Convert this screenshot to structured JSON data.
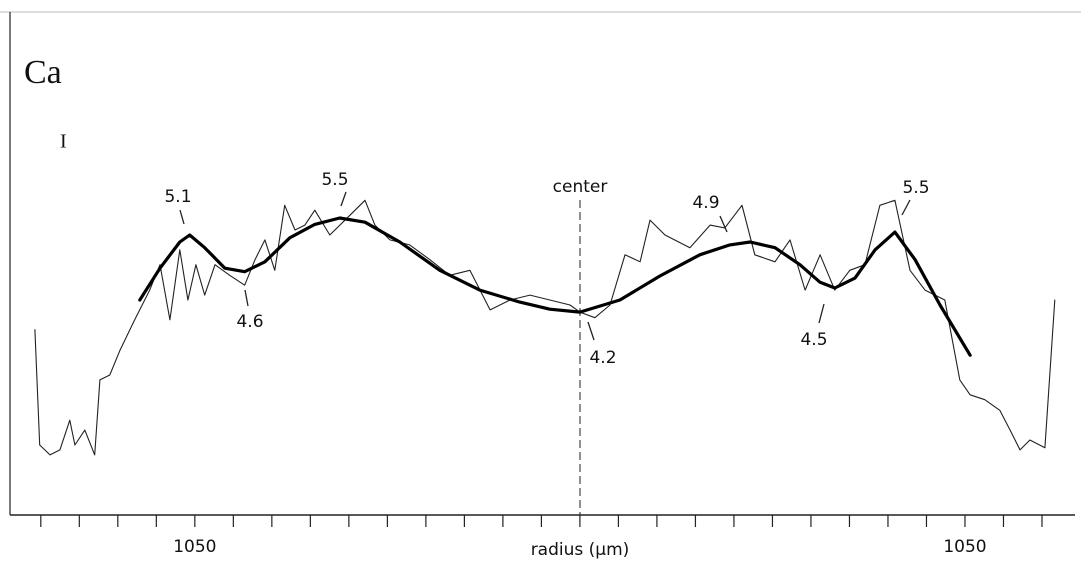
{
  "chart_data": {
    "type": "line",
    "element": "Ca",
    "marker_label": "I",
    "xlabel": "radius (µm)",
    "center_label": "center",
    "annotations": [
      "5.1",
      "4.6",
      "5.5",
      "4.2",
      "4.9",
      "4.5",
      "5.5"
    ],
    "xlim": [
      -1554,
      1350
    ],
    "ylim": [
      1.4,
      8.4
    ],
    "xticks": [
      {
        "value": -1050,
        "label": "1050"
      },
      {
        "value": 1050,
        "label": "1050"
      }
    ],
    "xminor_ticks": [
      -1470,
      -1365,
      -1260,
      -1155,
      -945,
      -840,
      -735,
      -630,
      -525,
      -420,
      -315,
      -210,
      -105,
      0,
      105,
      210,
      315,
      420,
      525,
      630,
      735,
      840,
      945,
      1155,
      1260
    ],
    "series": [
      {
        "color": "#222222",
        "x": [
          -1486,
          -1473,
          -1445,
          -1418,
          -1391,
          -1377,
          -1350,
          -1323,
          -1309,
          -1282,
          -1254,
          -1214,
          -1173,
          -1145,
          -1118,
          -1091,
          -1069,
          -1047,
          -1023,
          -995,
          -955,
          -914,
          -886,
          -859,
          -832,
          -805,
          -777,
          -750,
          -723,
          -682,
          -627,
          -586,
          -559,
          -518,
          -464,
          -409,
          -355,
          -300,
          -245,
          -191,
          -136,
          -82,
          -27,
          0,
          41,
          82,
          123,
          164,
          191,
          232,
          300,
          355,
          395,
          442,
          477,
          532,
          573,
          614,
          655,
          695,
          736,
          777,
          818,
          859,
          900,
          941,
          995,
          1036,
          1064,
          1104,
          1145,
          1173,
          1200,
          1227,
          1268,
          1295
        ],
        "values": [
          4.02,
          2.39,
          2.25,
          2.32,
          2.74,
          2.39,
          2.6,
          2.25,
          3.31,
          3.38,
          3.73,
          4.16,
          4.58,
          4.94,
          4.16,
          5.15,
          4.44,
          4.94,
          4.51,
          4.94,
          4.79,
          4.65,
          5.01,
          5.29,
          4.86,
          5.78,
          5.43,
          5.5,
          5.71,
          5.36,
          5.64,
          5.85,
          5.5,
          5.29,
          5.22,
          5.01,
          4.79,
          4.86,
          4.3,
          4.44,
          4.51,
          4.44,
          4.37,
          4.27,
          4.19,
          4.37,
          5.08,
          4.98,
          5.57,
          5.36,
          5.18,
          5.5,
          5.46,
          5.78,
          5.08,
          4.98,
          5.29,
          4.58,
          5.08,
          4.58,
          4.86,
          4.94,
          5.78,
          5.85,
          4.86,
          4.58,
          4.44,
          3.31,
          3.1,
          3.03,
          2.88,
          2.6,
          2.32,
          2.46,
          2.35,
          4.44
        ]
      },
      {
        "color": "#000000",
        "x": [
          -1200,
          -1145,
          -1091,
          -1064,
          -1023,
          -968,
          -914,
          -859,
          -791,
          -723,
          -655,
          -586,
          -491,
          -382,
          -273,
          -164,
          -82,
          0,
          109,
          218,
          327,
          409,
          464,
          532,
          600,
          655,
          695,
          750,
          805,
          859,
          914,
          982,
          1064
        ],
        "values": [
          4.44,
          4.89,
          5.26,
          5.36,
          5.18,
          4.89,
          4.84,
          4.98,
          5.32,
          5.51,
          5.6,
          5.54,
          5.26,
          4.86,
          4.58,
          4.41,
          4.31,
          4.27,
          4.44,
          4.78,
          5.08,
          5.22,
          5.26,
          5.18,
          4.94,
          4.69,
          4.61,
          4.75,
          5.15,
          5.4,
          5.01,
          4.37,
          3.66
        ]
      }
    ]
  }
}
